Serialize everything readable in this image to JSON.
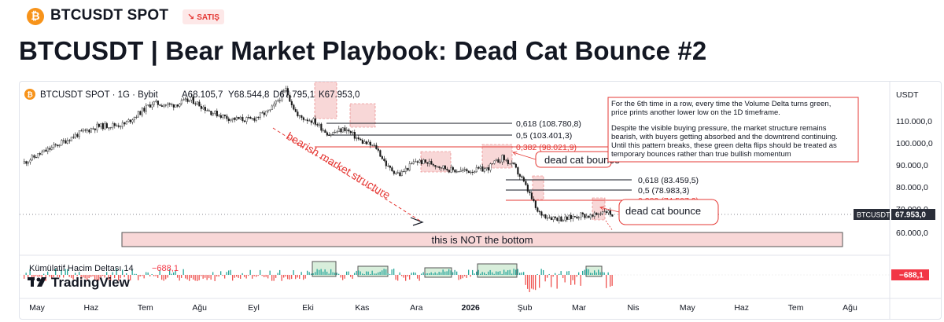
{
  "header": {
    "coin_icon": "bitcoin-icon",
    "symbol": "BTCUSDT SPOT",
    "badge": "SATIŞ",
    "badge_icon": "arrow-down-right-icon",
    "title": "BTCUSDT | Bear Market Playbook: Dead Cat Bounce #2"
  },
  "legend": {
    "text": "BTCUSDT SPOT · 1G · Bybit",
    "o": "A68.105,7",
    "h": "Y68.544,8",
    "l": "D67.795,1",
    "c": "K67.953,0"
  },
  "price_axis": {
    "currency": "USDT",
    "ticks": [
      "110.000,0",
      "100.000,0",
      "90.000,0",
      "80.000,0",
      "70.000,0",
      "60.000,0"
    ],
    "last_symbol": "BTCUSDT",
    "last_price": "67.953,0"
  },
  "fib1": [
    "0,618 (108.780,8)",
    "0,5 (103.401,3)",
    "0,382 (98.021,9)"
  ],
  "fib2": [
    "0,618 (83.459,5)",
    "0,5 (78.983,3)",
    "0,382 (74.507,2)"
  ],
  "annotations": {
    "note_p1_l1": "For the 6th time in a row, every time the Volume Delta turns green,",
    "note_p1_l2": "price prints another lower low on the 1D timeframe.",
    "note_p2_l1": "Despite the visible buying pressure, the market structure remains",
    "note_p2_l2": "bearish, with buyers getting absorbed and the downtrend continuing.",
    "note_p2_l3": "Until this pattern breaks, these green delta flips should be treated as",
    "note_p2_l4": "temporary bounces rather than true bullish momentum",
    "dead_cat_1": "dead cat bounce",
    "dead_cat_2": "dead cat bounce",
    "bearish": "bearish market structure",
    "bottom": "this is NOT the bottom"
  },
  "indicator": {
    "name": "Kümülatif Hacim Deltası 14",
    "value": "−688,1",
    "axis_value": "−688,1"
  },
  "watermark": "TradingView",
  "time_axis": [
    "May",
    "Haz",
    "Tem",
    "Ağu",
    "Eyl",
    "Eki",
    "Kas",
    "Ara",
    "2026",
    "Şub",
    "Mar",
    "Nis",
    "May",
    "Haz",
    "Tem",
    "Ağu"
  ],
  "colors": {
    "up": "#26a69a",
    "down": "#ef5350",
    "annotation": "#e53935",
    "highlight_fill": "#f8d7d7",
    "delta_box": "#d8eedb",
    "price_label": "#2a2e39",
    "indicator_label": "#f23645"
  }
}
